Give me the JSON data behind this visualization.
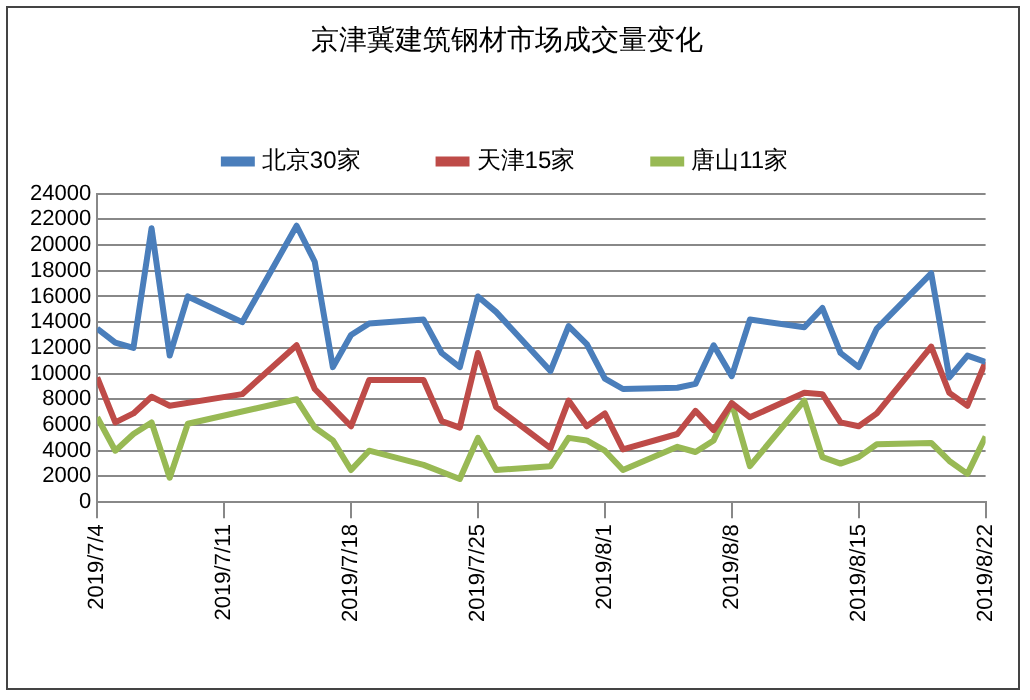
{
  "chart_data": {
    "type": "line",
    "title": "京津冀建筑钢材市场成交量变化",
    "x": [
      "2019-07-04",
      "2019-07-05",
      "2019-07-06",
      "2019-07-07",
      "2019-07-08",
      "2019-07-09",
      "2019-07-12",
      "2019-07-15",
      "2019-07-16",
      "2019-07-17",
      "2019-07-18",
      "2019-07-19",
      "2019-07-22",
      "2019-07-23",
      "2019-07-24",
      "2019-07-25",
      "2019-07-26",
      "2019-07-29",
      "2019-07-30",
      "2019-07-31",
      "2019-08-01",
      "2019-08-02",
      "2019-08-05",
      "2019-08-06",
      "2019-08-07",
      "2019-08-08",
      "2019-08-09",
      "2019-08-12",
      "2019-08-13",
      "2019-08-14",
      "2019-08-15",
      "2019-08-16",
      "2019-08-19",
      "2019-08-20",
      "2019-08-21",
      "2019-08-22"
    ],
    "series": [
      {
        "name": "北京30家",
        "color": "#4a7ebb",
        "values": [
          13500,
          12400,
          12000,
          21300,
          11400,
          16000,
          14000,
          21500,
          18700,
          10500,
          13000,
          13900,
          14200,
          11600,
          10500,
          16000,
          14800,
          10200,
          13700,
          12300,
          9600,
          8800,
          8900,
          9200,
          12200,
          9800,
          14200,
          13600,
          15100,
          11600,
          10500,
          13500,
          17800,
          9700,
          11400,
          10900
        ]
      },
      {
        "name": "天津15家",
        "color": "#be4b48",
        "values": [
          9700,
          6200,
          6900,
          8200,
          7500,
          null,
          8400,
          12200,
          8800,
          null,
          5900,
          9500,
          9500,
          6300,
          5800,
          11600,
          7400,
          4200,
          7900,
          5900,
          6900,
          4100,
          5300,
          7100,
          5600,
          7700,
          6600,
          8500,
          8400,
          6200,
          5900,
          6900,
          12100,
          8500,
          7500,
          10900
        ]
      },
      {
        "name": "唐山11家",
        "color": "#98b954",
        "values": [
          6600,
          4000,
          5300,
          6200,
          1900,
          6100,
          null,
          8000,
          5800,
          4800,
          2500,
          4000,
          2900,
          null,
          1800,
          5000,
          2500,
          2800,
          5000,
          4800,
          4000,
          2500,
          4300,
          3900,
          4800,
          7700,
          2800,
          7900,
          3500,
          3000,
          3500,
          4500,
          4600,
          3200,
          2200,
          5100
        ]
      }
    ],
    "xlim": [
      "2019-07-04",
      "2019-08-22"
    ],
    "xticks": [
      {
        "value": "2019-07-04",
        "label": "2019/7/4"
      },
      {
        "value": "2019-07-11",
        "label": "2019/7/11"
      },
      {
        "value": "2019-07-18",
        "label": "2019/7/18"
      },
      {
        "value": "2019-07-25",
        "label": "2019/7/25"
      },
      {
        "value": "2019-08-01",
        "label": "2019/8/1"
      },
      {
        "value": "2019-08-08",
        "label": "2019/8/8"
      },
      {
        "value": "2019-08-15",
        "label": "2019/8/15"
      },
      {
        "value": "2019-08-22",
        "label": "2019/8/22"
      }
    ],
    "ylim": [
      0,
      24000
    ],
    "yticks": [
      0,
      2000,
      4000,
      6000,
      8000,
      10000,
      12000,
      14000,
      16000,
      18000,
      20000,
      22000,
      24000
    ],
    "grid": "y",
    "legend": "top",
    "marker": "none",
    "line_style": "solid"
  }
}
